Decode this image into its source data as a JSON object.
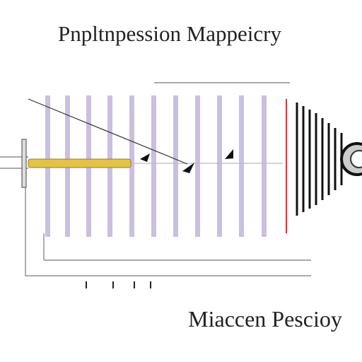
{
  "header": {
    "title": "Pnpltnpession Mappeicry"
  },
  "footer": {
    "caption": "Miaccen Pescioy"
  }
}
